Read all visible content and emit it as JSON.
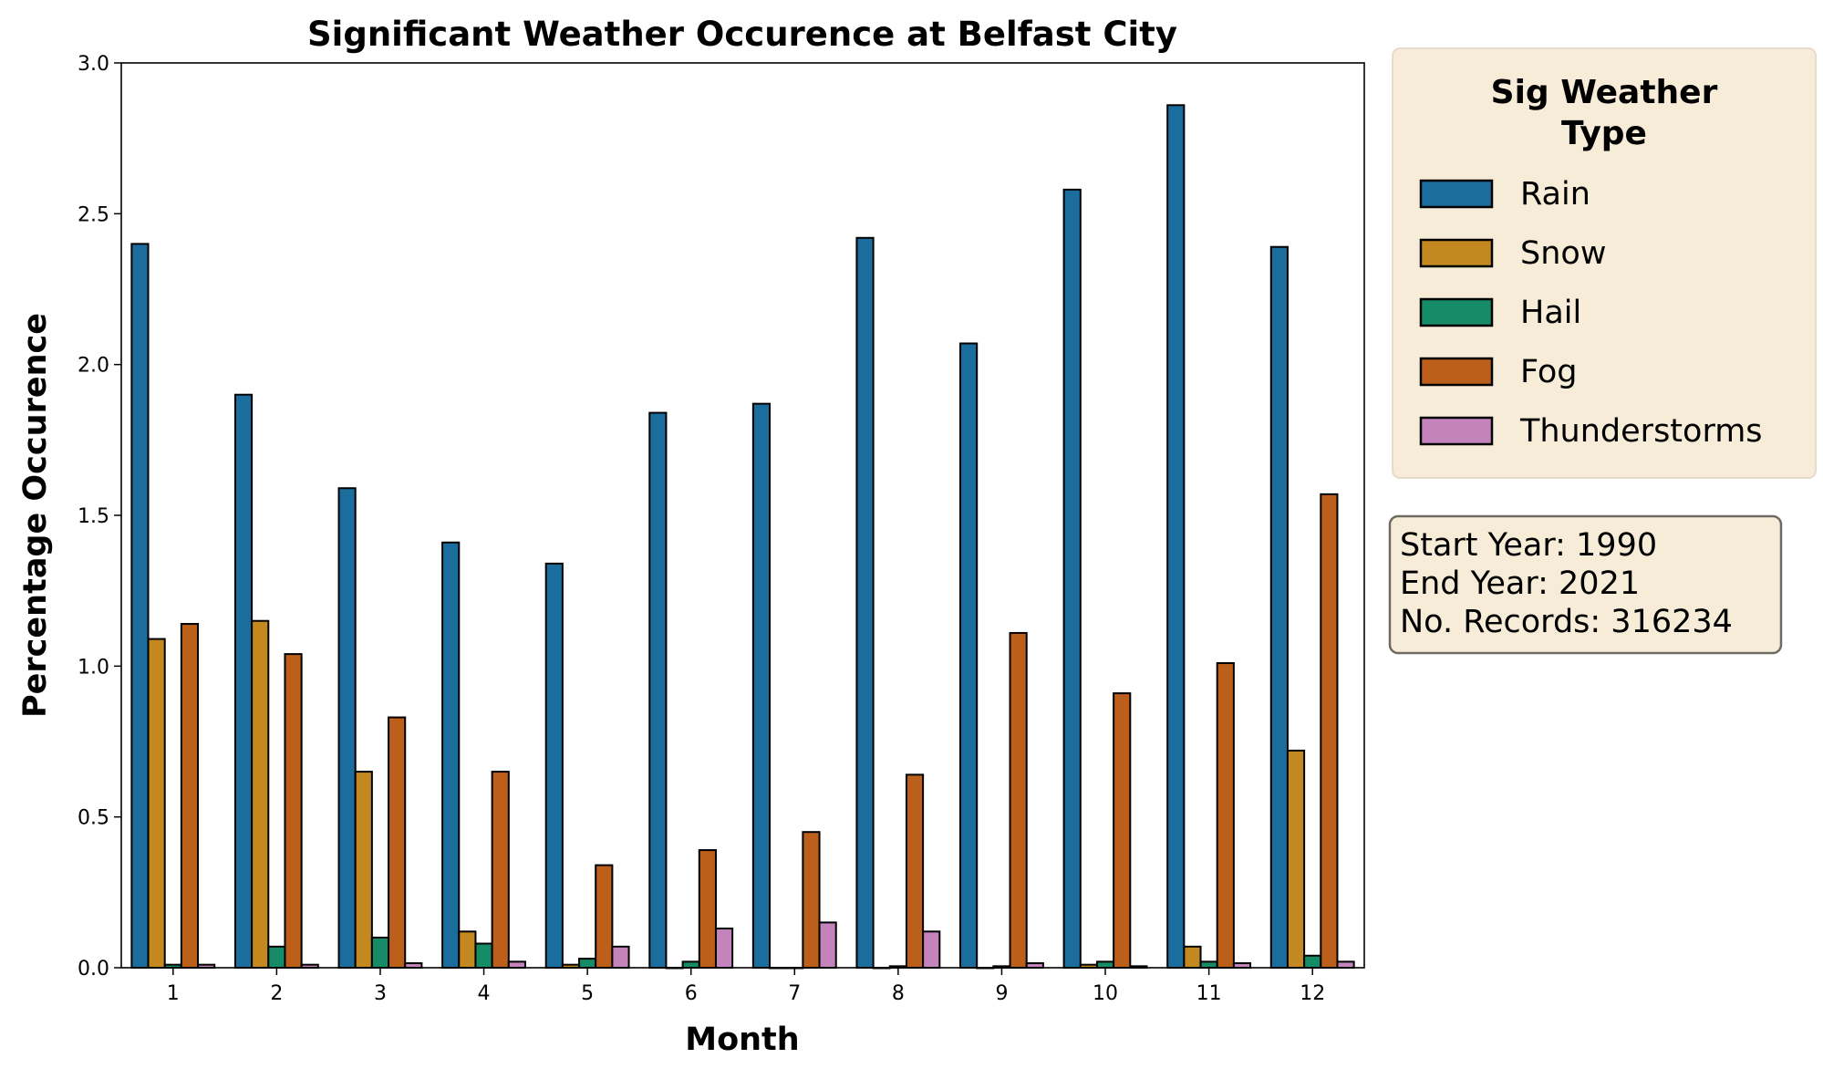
{
  "chart_data": {
    "type": "bar",
    "title": "Significant Weather Occurence at Belfast City",
    "xlabel": "Month",
    "ylabel": "Percentage Occurence",
    "categories": [
      "1",
      "2",
      "3",
      "4",
      "5",
      "6",
      "7",
      "8",
      "9",
      "10",
      "11",
      "12"
    ],
    "ylim": [
      0,
      3.0
    ],
    "yticks": [
      "0.0",
      "0.5",
      "1.0",
      "1.5",
      "2.0",
      "2.5",
      "3.0"
    ],
    "grid": false,
    "legend": {
      "title": "Sig Weather Type",
      "title_lines": [
        "Sig Weather",
        "Type"
      ],
      "placement": "outside-top-right"
    },
    "series": [
      {
        "name": "Rain",
        "color": "#1b6d9e",
        "values": [
          2.4,
          1.9,
          1.59,
          1.41,
          1.34,
          1.84,
          1.87,
          2.42,
          2.07,
          2.58,
          2.86,
          2.39
        ]
      },
      {
        "name": "Snow",
        "color": "#c38820",
        "values": [
          1.09,
          1.15,
          0.65,
          0.12,
          0.01,
          0.0,
          0.0,
          0.0,
          0.0,
          0.01,
          0.07,
          0.72
        ]
      },
      {
        "name": "Hail",
        "color": "#168c66",
        "values": [
          0.01,
          0.07,
          0.1,
          0.08,
          0.03,
          0.02,
          0.0,
          0.005,
          0.005,
          0.02,
          0.02,
          0.04
        ]
      },
      {
        "name": "Fog",
        "color": "#bb5f1b",
        "values": [
          1.14,
          1.04,
          0.83,
          0.65,
          0.34,
          0.39,
          0.45,
          0.64,
          1.11,
          0.91,
          1.01,
          1.57
        ]
      },
      {
        "name": "Thunderstorms",
        "color": "#c583bb",
        "values": [
          0.01,
          0.01,
          0.015,
          0.02,
          0.07,
          0.13,
          0.15,
          0.12,
          0.015,
          0.005,
          0.015,
          0.02
        ]
      }
    ],
    "annotation": {
      "lines": [
        "Start Year: 1990",
        "End Year: 2021",
        "No. Records: 316234"
      ]
    }
  }
}
